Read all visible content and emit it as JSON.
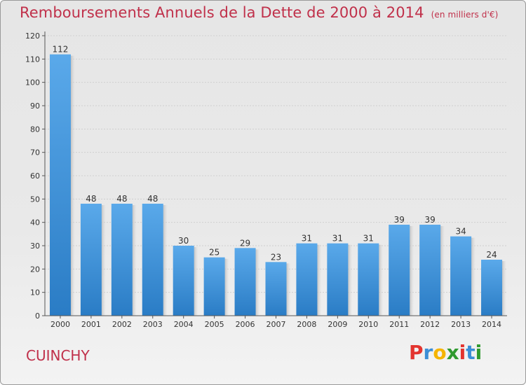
{
  "title": "Remboursements Annuels de la Dette de 2000 à 2014",
  "unit": "(en milliers d'€)",
  "commune": "CUINCHY",
  "brand": {
    "letters": [
      "P",
      "r",
      "o",
      "x",
      "i",
      "t",
      "i"
    ],
    "colors": [
      "#e3342f",
      "#3b8ed6",
      "#f5b400",
      "#2f9a2f",
      "#e3342f",
      "#3b8ed6",
      "#2f9a2f"
    ]
  },
  "colors": {
    "bar": "#3a8fd8",
    "title": "#c0304a"
  },
  "chart_data": {
    "type": "bar",
    "categories": [
      "2000",
      "2001",
      "2002",
      "2003",
      "2004",
      "2005",
      "2006",
      "2007",
      "2008",
      "2009",
      "2010",
      "2011",
      "2012",
      "2013",
      "2014"
    ],
    "values": [
      112,
      48,
      48,
      48,
      30,
      25,
      29,
      23,
      31,
      31,
      31,
      39,
      39,
      34,
      24
    ],
    "ylim": [
      0,
      120
    ],
    "yticks": [
      0,
      10,
      20,
      30,
      40,
      50,
      60,
      70,
      80,
      90,
      100,
      110,
      120
    ],
    "grid": true,
    "data_labels": true
  }
}
